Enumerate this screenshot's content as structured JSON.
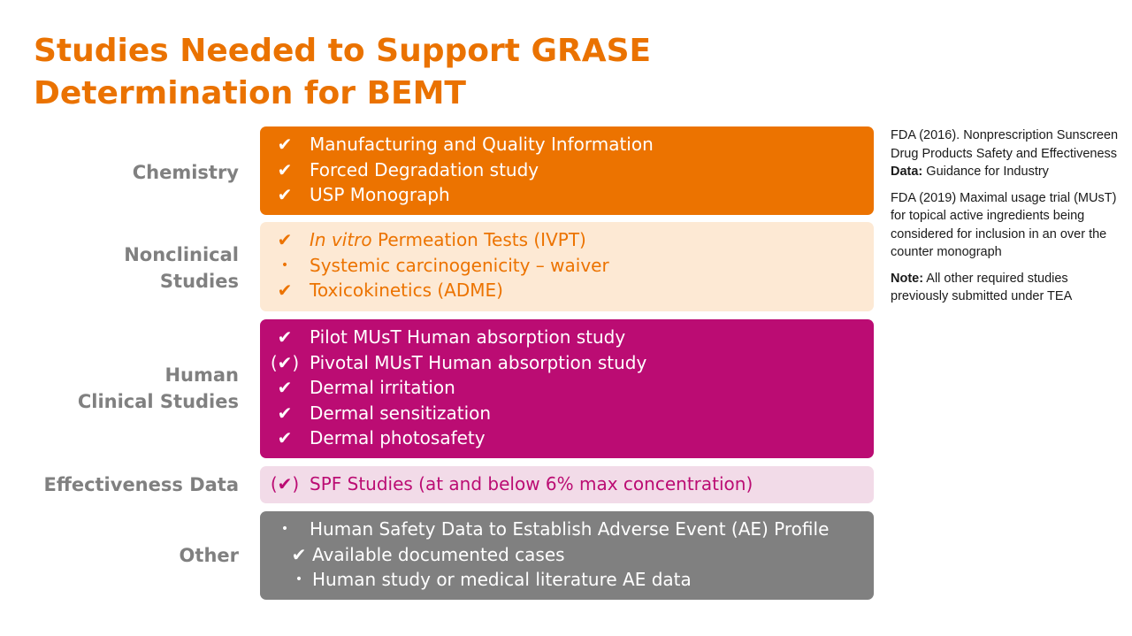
{
  "title": {
    "line1": "Studies Needed to Support GRASE",
    "line2": "Determination for BEMT"
  },
  "rows": {
    "chemistry": {
      "label": "Chemistry",
      "items": [
        {
          "mark": "✔",
          "text": "Manufacturing and Quality Information"
        },
        {
          "mark": "✔",
          "text": "Forced Degradation study"
        },
        {
          "mark": "✔",
          "text": "USP Monograph"
        }
      ]
    },
    "nonclinical": {
      "label_line1": "Nonclinical",
      "label_line2": "Studies",
      "items": [
        {
          "mark": "✔",
          "italic": "In vitro",
          "text": " Permeation Tests (IVPT)"
        },
        {
          "mark": "•",
          "text": "Systemic carcinogenicity – waiver"
        },
        {
          "mark": "✔",
          "text": "Toxicokinetics (ADME)"
        }
      ]
    },
    "human": {
      "label_line1": "Human",
      "label_line2": "Clinical Studies",
      "items": [
        {
          "mark": "✔",
          "text": "Pilot MUsT Human absorption study"
        },
        {
          "mark": "(✔)",
          "text": "Pivotal MUsT Human absorption study"
        },
        {
          "mark": "✔",
          "text": "Dermal irritation"
        },
        {
          "mark": "✔",
          "text": "Dermal sensitization"
        },
        {
          "mark": "✔",
          "text": "Dermal photosafety"
        }
      ]
    },
    "effectiveness": {
      "label": "Effectiveness Data",
      "items": [
        {
          "mark": "(✔)",
          "text": "SPF Studies (at and below 6% max concentration)"
        }
      ]
    },
    "other": {
      "label": "Other",
      "items": [
        {
          "mark": "•",
          "text": "Human Safety Data to Establish Adverse Event (AE) Profile"
        },
        {
          "mark": "✔",
          "text": "Available documented cases"
        },
        {
          "mark": "•",
          "text": "Human study or medical literature AE data"
        }
      ]
    }
  },
  "notes": {
    "ref1": {
      "text": "FDA (2016). Nonprescription Sunscreen Drug Products Safety and Effectiveness",
      "bold": "Data:",
      "rest": " Guidance for Industry"
    },
    "ref2": {
      "text": "FDA (2019) Maximal usage trial (MUsT) for topical active ingredients being considered for inclusion in an over the counter monograph"
    },
    "note": {
      "bold": "Note:",
      "rest": " All other required studies previously submitted under TEA"
    }
  },
  "colors": {
    "title": "#ea7200",
    "label": "#808080",
    "chemistry_bg": "#ec7300",
    "nonclinical_bg": "#fde9d4",
    "human_bg": "#bb0c73",
    "effectiveness_bg": "#f2dbe8",
    "other_bg": "#808080"
  }
}
